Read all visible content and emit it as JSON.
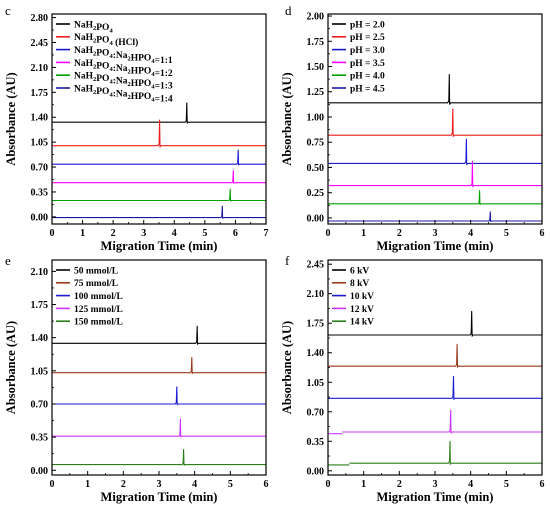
{
  "chart_data": [
    {
      "type": "line",
      "panel_label": "c",
      "xlabel": "Migration Time (min)",
      "ylabel": "Absorbance (AU)",
      "xlim": [
        0,
        7
      ],
      "ylim": [
        -0.1,
        2.85
      ],
      "xticks": [
        0,
        1,
        2,
        3,
        4,
        5,
        6,
        7
      ],
      "yticks": [
        0.0,
        0.35,
        0.7,
        1.05,
        1.4,
        1.75,
        2.1,
        2.45,
        2.8
      ],
      "ytick_labels": [
        "0.00",
        "0.35",
        "0.70",
        "1.05",
        "1.40",
        "1.75",
        "2.10",
        "2.45",
        "2.80"
      ],
      "legend_position": "top-left",
      "series": [
        {
          "name": "NaH2PO4",
          "label_main": "NaH",
          "label_parts": [
            [
              "NaH",
              false
            ],
            [
              "2",
              true
            ],
            [
              "PO",
              false
            ],
            [
              "4",
              true
            ]
          ],
          "color": "#000000",
          "baseline": 1.33,
          "peak_x": 4.41,
          "peak_height": 0.27,
          "trace_start": 0.0
        },
        {
          "name": "NaH2PO4 (HCl)",
          "label_parts": [
            [
              "NaH",
              false
            ],
            [
              "2",
              true
            ],
            [
              "PO",
              false
            ],
            [
              "4",
              true
            ],
            [
              " (HCl)",
              false
            ]
          ],
          "color": "#ee1c1c",
          "baseline": 1.0,
          "peak_x": 3.52,
          "peak_height": 0.36,
          "trace_start": 0.0
        },
        {
          "name": "NaH2PO4:Na2HPO4=1:1",
          "label_parts": [
            [
              "NaH",
              false
            ],
            [
              "2",
              true
            ],
            [
              "PO",
              false
            ],
            [
              "4",
              true
            ],
            [
              ":Na",
              false
            ],
            [
              "2",
              true
            ],
            [
              "HPO",
              false
            ],
            [
              "4",
              true
            ],
            [
              "=1:1",
              false
            ]
          ],
          "color": "#1a1ad6",
          "baseline": 0.74,
          "peak_x": 6.09,
          "peak_height": 0.2,
          "trace_start": 0.0
        },
        {
          "name": "NaH2PO4:Na2HPO4=1:2",
          "label_parts": [
            [
              "NaH",
              false
            ],
            [
              "2",
              true
            ],
            [
              "PO",
              false
            ],
            [
              "4",
              true
            ],
            [
              ":Na",
              false
            ],
            [
              "2",
              true
            ],
            [
              "HPO",
              false
            ],
            [
              "4",
              true
            ],
            [
              "=1:2",
              false
            ]
          ],
          "color": "#ff00ff",
          "baseline": 0.48,
          "peak_x": 5.93,
          "peak_height": 0.17,
          "trace_start": 0.0
        },
        {
          "name": "NaH2PO4:Na2HPO4=1:3",
          "label_parts": [
            [
              "NaH",
              false
            ],
            [
              "2",
              true
            ],
            [
              "PO",
              false
            ],
            [
              "4",
              true
            ],
            [
              ":Na",
              false
            ],
            [
              "2",
              true
            ],
            [
              "HPO",
              false
            ],
            [
              "4",
              true
            ],
            [
              "=1:3",
              false
            ]
          ],
          "color": "#00a000",
          "baseline": 0.23,
          "peak_x": 5.83,
          "peak_height": 0.16,
          "trace_start": 0.0
        },
        {
          "name": "NaH2PO4:Na2HPO4=1:4",
          "label_parts": [
            [
              "NaH",
              false
            ],
            [
              "2",
              true
            ],
            [
              "PO",
              false
            ],
            [
              "4",
              true
            ],
            [
              ":Na",
              false
            ],
            [
              "2",
              true
            ],
            [
              "HPO",
              false
            ],
            [
              "4",
              true
            ],
            [
              "=1:4",
              false
            ]
          ],
          "color": "#1a1a9e",
          "baseline": -0.01,
          "peak_x": 5.57,
          "peak_height": 0.16,
          "trace_start": 0.0
        }
      ]
    },
    {
      "type": "line",
      "panel_label": "d",
      "xlabel": "Migration Time (min)",
      "ylabel": "Absorbance (AU)",
      "xlim": [
        0,
        6
      ],
      "ylim": [
        -0.06,
        2.02
      ],
      "xticks": [
        0,
        1,
        2,
        3,
        4,
        5,
        6
      ],
      "yticks": [
        0.0,
        0.25,
        0.5,
        0.75,
        1.0,
        1.25,
        1.5,
        1.75,
        2.0
      ],
      "ytick_labels": [
        "0.00",
        "0.25",
        "0.50",
        "0.75",
        "1.00",
        "1.25",
        "1.50",
        "1.75",
        "2.00"
      ],
      "legend_position": "top-left",
      "series": [
        {
          "name": "pH = 2.0",
          "label_parts": [
            [
              "pH = 2.0",
              false
            ]
          ],
          "color": "#000000",
          "baseline": 1.14,
          "peak_x": 3.4,
          "peak_height": 0.28,
          "trace_start": 0.0
        },
        {
          "name": "pH = 2.5",
          "label_parts": [
            [
              "pH = 2.5",
              false
            ]
          ],
          "color": "#ee1c1c",
          "baseline": 0.82,
          "peak_x": 3.5,
          "peak_height": 0.26,
          "trace_start": 0.0
        },
        {
          "name": "pH = 3.0",
          "label_parts": [
            [
              "pH = 3.0",
              false
            ]
          ],
          "color": "#1a1ad6",
          "baseline": 0.54,
          "peak_x": 3.88,
          "peak_height": 0.24,
          "trace_start": 0.0
        },
        {
          "name": "pH = 3.5",
          "label_parts": [
            [
              "pH = 3.5",
              false
            ]
          ],
          "color": "#ff00ff",
          "baseline": 0.32,
          "peak_x": 4.05,
          "peak_height": 0.24,
          "trace_start": 0.0
        },
        {
          "name": "pH = 4.0",
          "label_parts": [
            [
              "pH = 4.0",
              false
            ]
          ],
          "color": "#00a000",
          "baseline": 0.14,
          "peak_x": 4.25,
          "peak_height": 0.13,
          "trace_start": 0.0
        },
        {
          "name": "pH = 4.5",
          "label_parts": [
            [
              "pH = 4.5",
              false
            ]
          ],
          "color": "#1a1a9e",
          "baseline": -0.03,
          "peak_x": 4.55,
          "peak_height": 0.09,
          "trace_start": 0.0
        }
      ]
    },
    {
      "type": "line",
      "panel_label": "e",
      "xlabel": "Migration Time (min)",
      "ylabel": "Absorbance (AU)",
      "xlim": [
        0,
        6
      ],
      "ylim": [
        -0.05,
        2.22
      ],
      "xticks": [
        0,
        1,
        2,
        3,
        4,
        5,
        6
      ],
      "yticks": [
        0.0,
        0.35,
        0.7,
        1.05,
        1.4,
        1.75,
        2.1
      ],
      "ytick_labels": [
        "0.00",
        "0.35",
        "0.70",
        "1.05",
        "1.40",
        "1.75",
        "2.10"
      ],
      "legend_position": "top-left",
      "series": [
        {
          "name": "50 mmol/L",
          "label_parts": [
            [
              "50 mmol/L",
              false
            ]
          ],
          "color": "#000000",
          "baseline": 1.34,
          "peak_x": 4.07,
          "peak_height": 0.18,
          "trace_start": 0.0
        },
        {
          "name": "75 mmol/L",
          "label_parts": [
            [
              "75 mmol/L",
              false
            ]
          ],
          "color": "#9b3a1b",
          "baseline": 1.03,
          "peak_x": 3.92,
          "peak_height": 0.16,
          "trace_start": 0.0
        },
        {
          "name": "100 mmol/L",
          "label_parts": [
            [
              "100 mmol/L",
              false
            ]
          ],
          "color": "#1a1ad6",
          "baseline": 0.7,
          "peak_x": 3.5,
          "peak_height": 0.18,
          "trace_start": 0.0
        },
        {
          "name": "125 mmol/L",
          "label_parts": [
            [
              "125 mmol/L",
              false
            ]
          ],
          "color": "#cc33ff",
          "baseline": 0.36,
          "peak_x": 3.6,
          "peak_height": 0.18,
          "trace_start": 0.0
        },
        {
          "name": "150 mmol/L",
          "label_parts": [
            [
              "150 mmol/L",
              false
            ]
          ],
          "color": "#2a7f1a",
          "baseline": 0.06,
          "peak_x": 3.69,
          "peak_height": 0.16,
          "trace_start": 0.0
        }
      ]
    },
    {
      "type": "line",
      "panel_label": "f",
      "xlabel": "Migration Time (min)",
      "ylabel": "Absorbance (AU)",
      "xlim": [
        0,
        6
      ],
      "ylim": [
        -0.05,
        2.5
      ],
      "xticks": [
        0,
        1,
        2,
        3,
        4,
        5,
        6
      ],
      "yticks": [
        0.0,
        0.35,
        0.7,
        1.05,
        1.4,
        1.75,
        2.1,
        2.45
      ],
      "ytick_labels": [
        "0.00",
        "0.35",
        "0.70",
        "1.05",
        "1.40",
        "1.75",
        "2.10",
        "2.45"
      ],
      "legend_position": "top-left",
      "series": [
        {
          "name": "6 kV",
          "label_parts": [
            [
              "6 kV",
              false
            ]
          ],
          "color": "#000000",
          "baseline": 1.61,
          "peak_x": 4.03,
          "peak_height": 0.28,
          "trace_start": 0.0
        },
        {
          "name": "8 kV",
          "label_parts": [
            [
              "8 kV",
              false
            ]
          ],
          "color": "#9b3a1b",
          "baseline": 1.24,
          "peak_x": 3.62,
          "peak_height": 0.26,
          "trace_start": 0.0
        },
        {
          "name": "10 kV",
          "label_parts": [
            [
              "10 kV",
              false
            ]
          ],
          "color": "#1a1ad6",
          "baseline": 0.86,
          "peak_x": 3.52,
          "peak_height": 0.26,
          "trace_start": 0.0
        },
        {
          "name": "12 kV",
          "label_parts": [
            [
              "12 kV",
              false
            ]
          ],
          "color": "#cc33ff",
          "baseline": 0.46,
          "peak_x": 3.44,
          "peak_height": 0.26,
          "trace_start": 0.4
        },
        {
          "name": "14 kV",
          "label_parts": [
            [
              "14 kV",
              false
            ]
          ],
          "color": "#2a7f1a",
          "baseline": 0.09,
          "peak_x": 3.42,
          "peak_height": 0.26,
          "trace_start": 0.6
        }
      ]
    }
  ]
}
